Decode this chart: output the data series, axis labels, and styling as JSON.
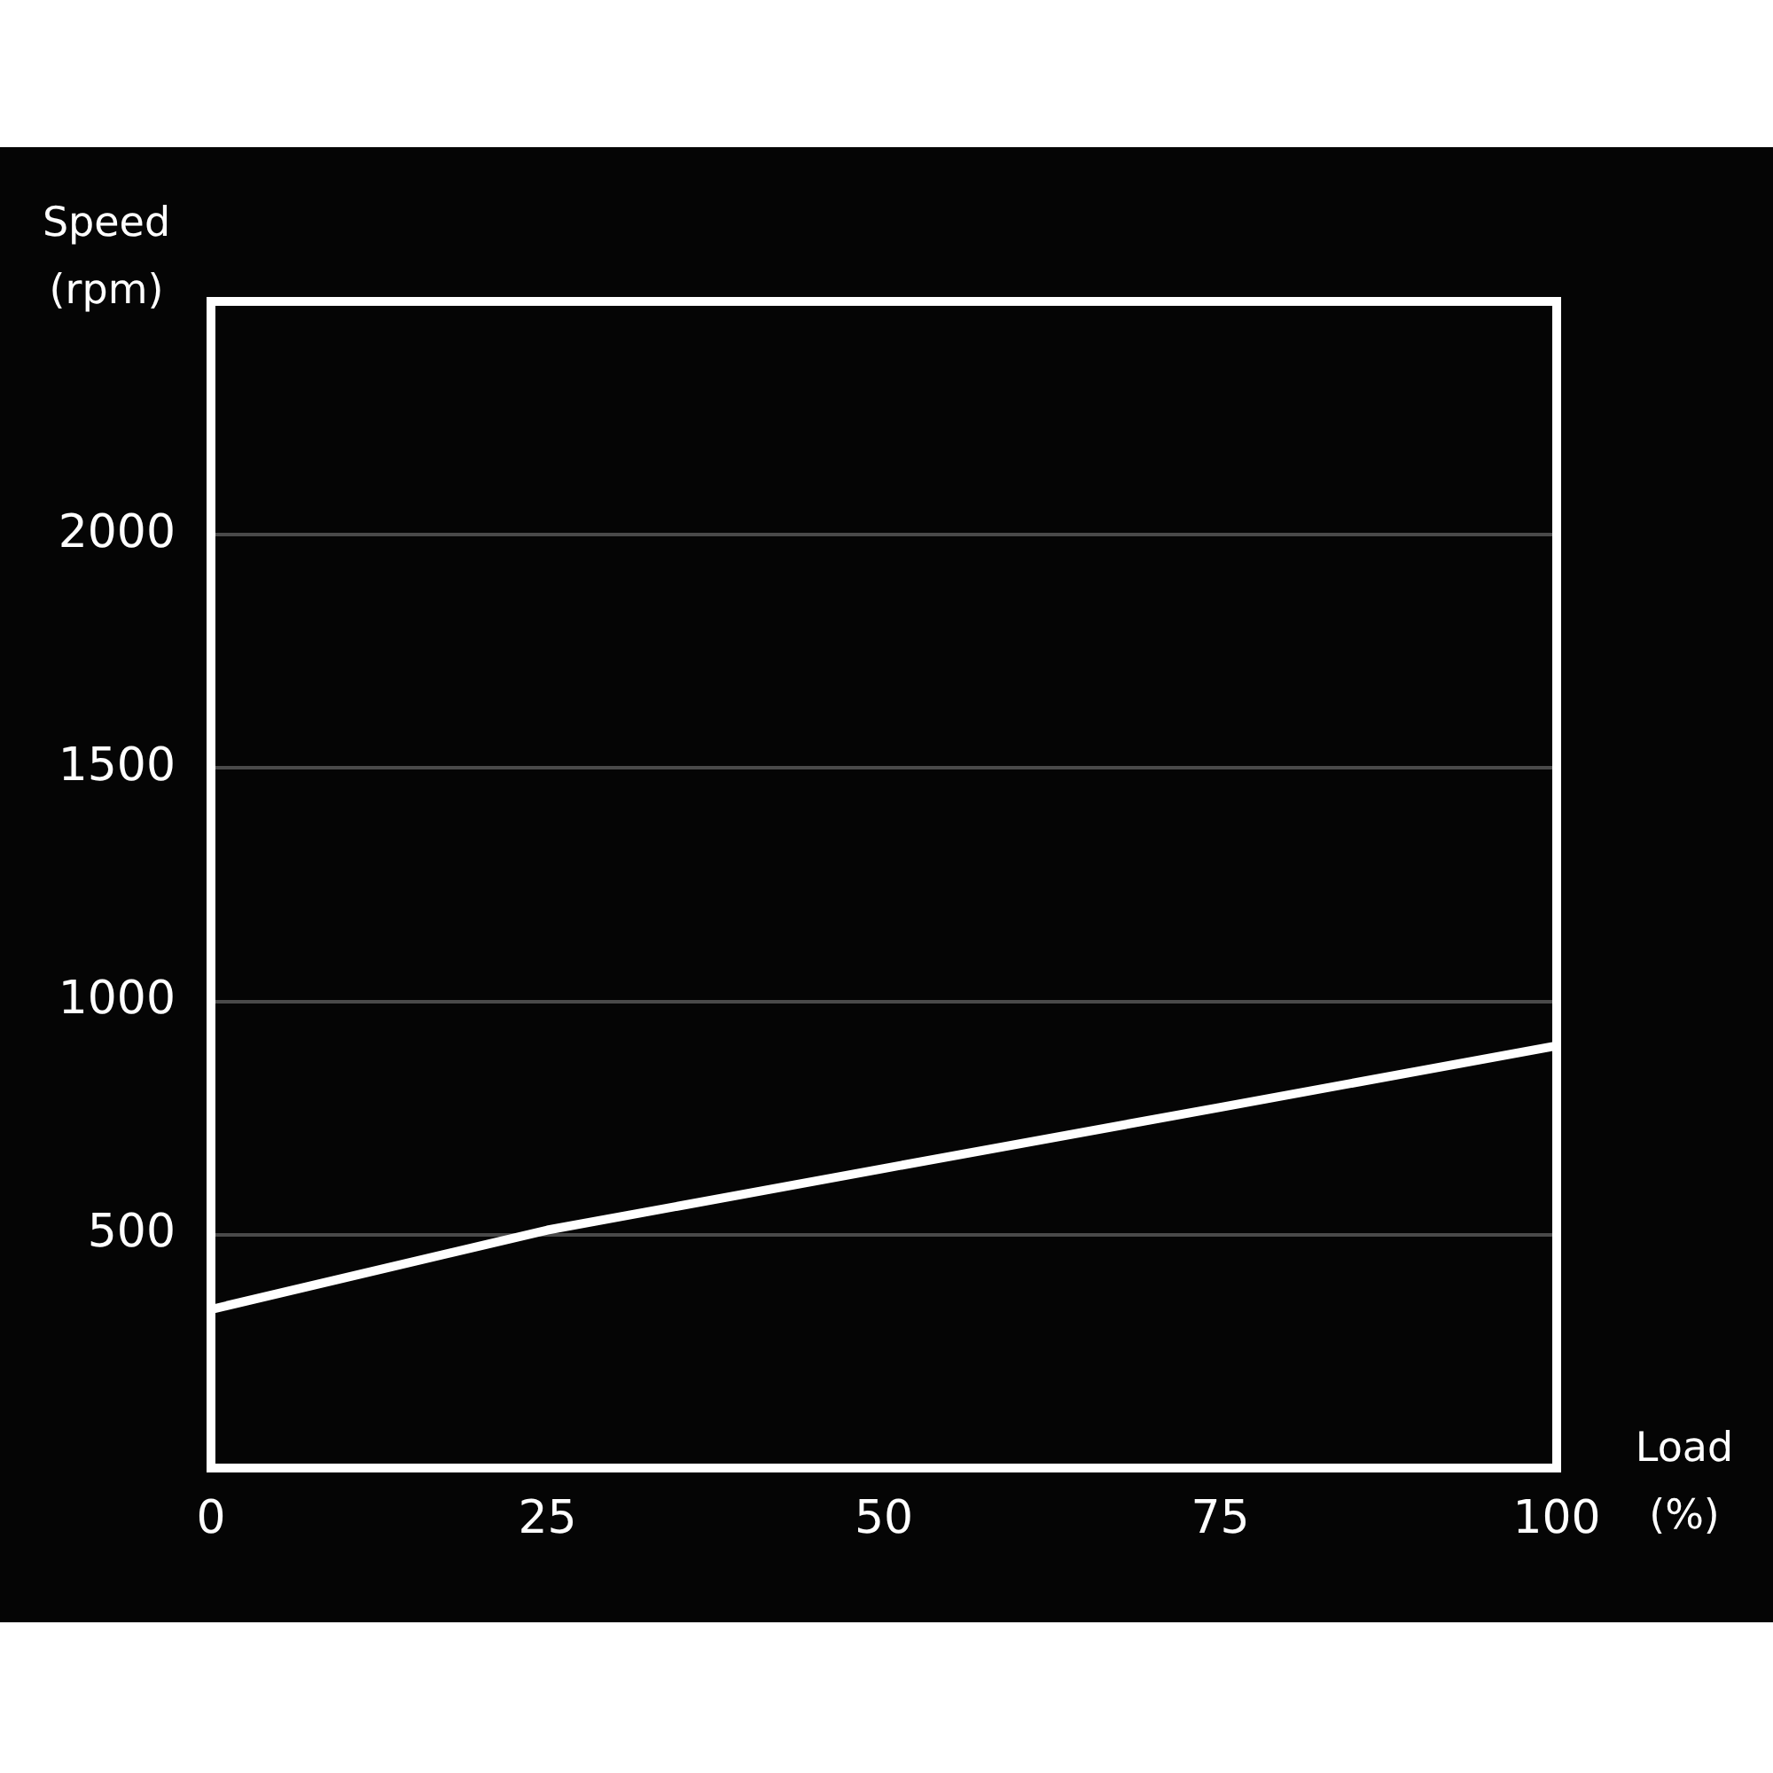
{
  "chart_data": {
    "type": "line",
    "xlabel": "Load (%)",
    "ylabel": "Speed (rpm)",
    "xlim": [
      0,
      100
    ],
    "xticks": [
      0,
      25,
      50,
      75,
      100
    ],
    "ylim": [
      0,
      2500
    ],
    "yticks": [
      500,
      1000,
      1500,
      2000
    ],
    "grid": "y",
    "legend": false,
    "marker": "none",
    "line_style": "solid",
    "series": [
      {
        "color": "#ffffff",
        "x": [
          0,
          25,
          50,
          75,
          100
        ],
        "values": [
          340,
          510,
          642,
          773,
          905
        ]
      }
    ]
  }
}
